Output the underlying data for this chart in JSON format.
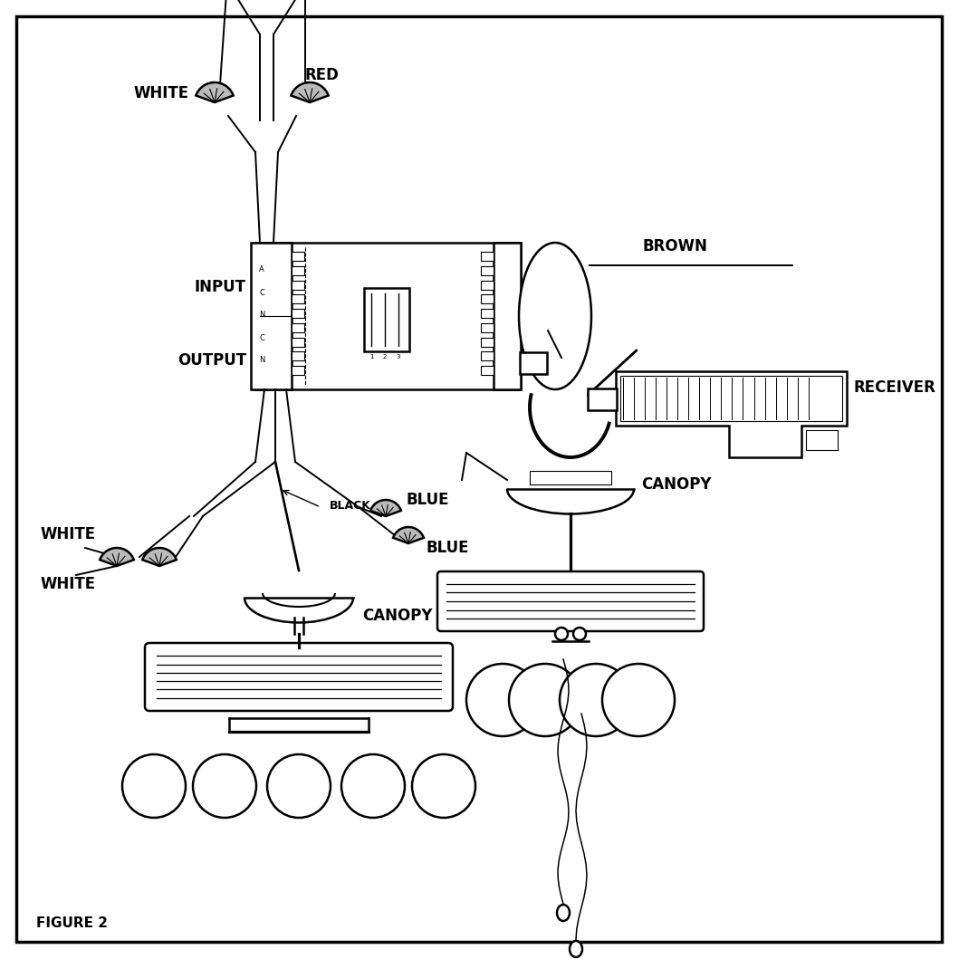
{
  "bg_color": "#ffffff",
  "border_color": "#000000",
  "line_color": "#000000",
  "text_color": "#000000",
  "labels": {
    "white_top": "WHITE",
    "red": "RED",
    "input": "INPUT",
    "brown": "BROWN",
    "output": "OUTPUT",
    "white_left1": "WHITE",
    "white_left2": "WHITE",
    "black": "BLACK",
    "blue1": "BLUE",
    "blue2": "BLUE",
    "canopy_left": "CANOPY",
    "receiver": "RECEIVER",
    "canopy_right": "CANOPY",
    "figure2": "FIGURE 2"
  },
  "font_size_label": 12,
  "font_size_small": 8,
  "font_size_fig": 11,
  "lw_main": 1.8,
  "lw_thin": 1.0,
  "lw_wire": 1.4
}
